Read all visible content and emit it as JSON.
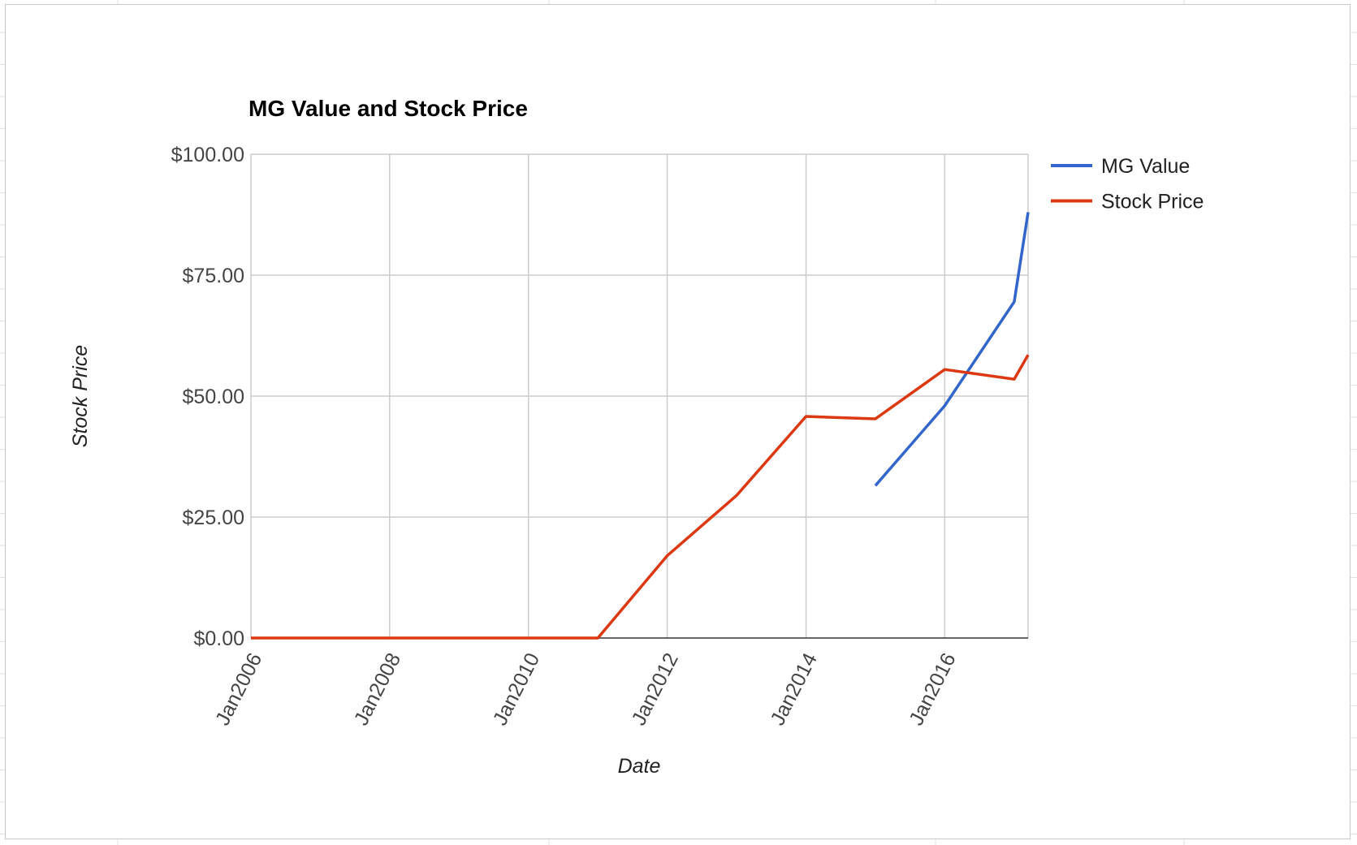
{
  "chart_data": {
    "type": "line",
    "title": "MG Value and Stock Price",
    "xlabel": "Date",
    "ylabel": "Stock Price",
    "x_axis": {
      "type": "date",
      "range": [
        "2006-01-01",
        "2017-03-15"
      ],
      "ticks": [
        {
          "date": "2006-01-01",
          "label": "Jan2006"
        },
        {
          "date": "2008-01-01",
          "label": "Jan2008"
        },
        {
          "date": "2010-01-01",
          "label": "Jan2010"
        },
        {
          "date": "2012-01-01",
          "label": "Jan2012"
        },
        {
          "date": "2014-01-01",
          "label": "Jan2014"
        },
        {
          "date": "2016-01-01",
          "label": "Jan2016"
        }
      ]
    },
    "y_axis": {
      "range": [
        0,
        100
      ],
      "ticks": [
        {
          "value": 0,
          "label": "$0.00"
        },
        {
          "value": 25,
          "label": "$25.00"
        },
        {
          "value": 50,
          "label": "$50.00"
        },
        {
          "value": 75,
          "label": "$75.00"
        },
        {
          "value": 100,
          "label": "$100.00"
        }
      ]
    },
    "grid": true,
    "legend": "right",
    "series": [
      {
        "name": "MG Value",
        "color": "#3366cc",
        "points": [
          {
            "x": "2015-01-01",
            "y": 31.5
          },
          {
            "x": "2016-01-01",
            "y": 48.0
          },
          {
            "x": "2017-01-01",
            "y": 69.5
          },
          {
            "x": "2017-03-15",
            "y": 88.0
          }
        ]
      },
      {
        "name": "Stock Price",
        "color": "#dc3912",
        "points": [
          {
            "x": "2006-01-01",
            "y": 0
          },
          {
            "x": "2011-01-01",
            "y": 0
          },
          {
            "x": "2012-01-01",
            "y": 17.0
          },
          {
            "x": "2013-01-01",
            "y": 29.5
          },
          {
            "x": "2014-01-01",
            "y": 45.8
          },
          {
            "x": "2015-01-01",
            "y": 45.3
          },
          {
            "x": "2016-01-01",
            "y": 55.5
          },
          {
            "x": "2017-01-01",
            "y": 53.5
          },
          {
            "x": "2017-03-15",
            "y": 58.5
          }
        ]
      }
    ]
  }
}
